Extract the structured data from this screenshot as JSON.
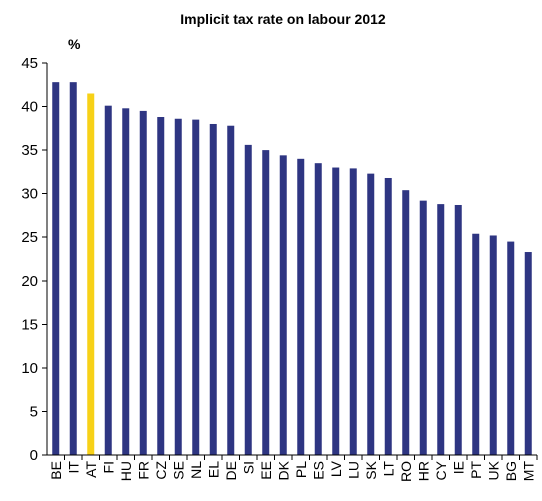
{
  "chart_data": {
    "type": "bar",
    "title": "Implicit tax rate on labour 2012",
    "unit_label": "%",
    "xlabel": "",
    "ylabel": "",
    "categories": [
      "BE",
      "IT",
      "AT",
      "FI",
      "HU",
      "FR",
      "CZ",
      "SE",
      "NL",
      "EL",
      "DE",
      "SI",
      "EE",
      "DK",
      "PL",
      "ES",
      "LV",
      "LU",
      "SK",
      "LT",
      "RO",
      "HR",
      "CY",
      "IE",
      "PT",
      "UK",
      "BG",
      "MT"
    ],
    "values": [
      42.8,
      42.8,
      41.5,
      40.1,
      39.8,
      39.5,
      38.8,
      38.6,
      38.5,
      38.0,
      37.8,
      35.6,
      35.0,
      34.4,
      34.0,
      33.5,
      33.0,
      32.9,
      32.3,
      31.8,
      30.4,
      29.2,
      28.8,
      28.7,
      25.4,
      25.2,
      24.5,
      23.3
    ],
    "highlight_category": "AT",
    "ylim": [
      0,
      45
    ],
    "yticks": [
      0,
      5,
      10,
      15,
      20,
      25,
      30,
      35,
      40,
      45
    ],
    "grid": false,
    "legend": "none",
    "colors": {
      "bar": "#2e3582",
      "highlight": "#f7d117"
    }
  }
}
